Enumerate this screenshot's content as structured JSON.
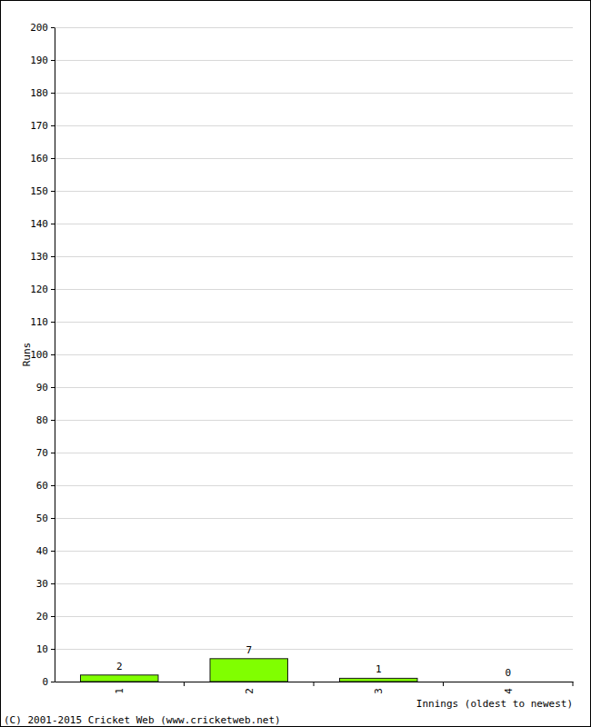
{
  "chart_data": {
    "type": "bar",
    "categories": [
      "1",
      "2",
      "3",
      "4"
    ],
    "values": [
      2,
      7,
      1,
      0
    ],
    "color": "#80ff00",
    "x_label": "Innings (oldest to newest)",
    "y_label": "Runs",
    "annotations": [
      "(C) 2001-2015 Cricket Web (www.cricketweb.net)"
    ],
    "ylim": [
      0,
      200
    ],
    "yticks": [
      0,
      10,
      20,
      30,
      40,
      50,
      60,
      70,
      80,
      90,
      100,
      110,
      120,
      130,
      140,
      150,
      160,
      170,
      180,
      190,
      200
    ],
    "grid": true,
    "data_labels": true
  }
}
